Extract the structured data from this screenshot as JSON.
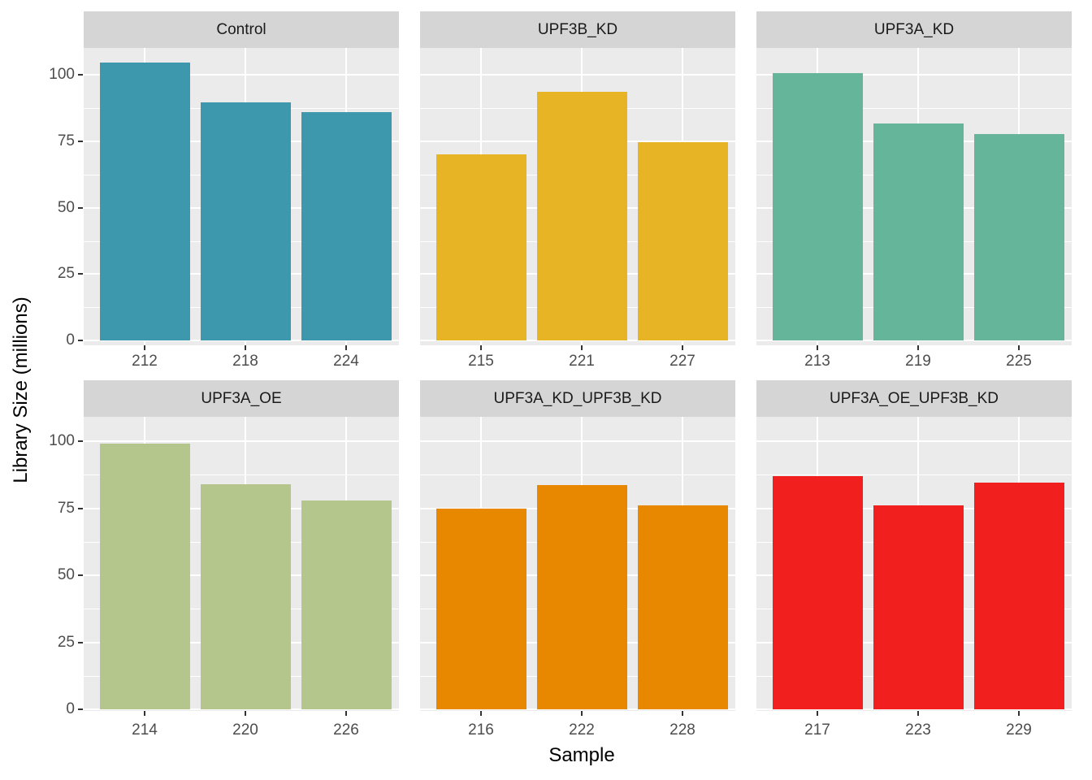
{
  "chart_data": {
    "type": "bar",
    "title": "",
    "xlabel": "Sample",
    "ylabel": "Library Size (millions)",
    "ylim": [
      0,
      110
    ],
    "y_ticks": [
      0,
      25,
      50,
      75,
      100
    ],
    "y_minor_gridlines": [
      12.5,
      37.5,
      62.5,
      87.5
    ],
    "grid": true,
    "legend": "none",
    "facet_layout": "2 rows x 3 columns",
    "facets": [
      {
        "label": "Control",
        "color": "#3D97AD",
        "categories": [
          "212",
          "218",
          "224"
        ],
        "values": [
          104.5,
          89.5,
          86.0
        ]
      },
      {
        "label": "UPF3B_KD",
        "color": "#E7B426",
        "categories": [
          "215",
          "221",
          "227"
        ],
        "values": [
          70.0,
          93.5,
          74.5
        ]
      },
      {
        "label": "UPF3A_KD",
        "color": "#64B59A",
        "categories": [
          "213",
          "219",
          "225"
        ],
        "values": [
          100.5,
          81.5,
          77.5
        ]
      },
      {
        "label": "UPF3A_OE",
        "color": "#B4C68C",
        "categories": [
          "214",
          "220",
          "226"
        ],
        "values": [
          99.0,
          84.0,
          78.0
        ]
      },
      {
        "label": "UPF3A_KD_UPF3B_KD",
        "color": "#E78800",
        "categories": [
          "216",
          "222",
          "228"
        ],
        "values": [
          75.0,
          83.5,
          76.0
        ]
      },
      {
        "label": "UPF3A_OE_UPF3B_KD",
        "color": "#F21F1F",
        "categories": [
          "217",
          "223",
          "229"
        ],
        "values": [
          87.0,
          76.0,
          84.5
        ]
      }
    ]
  },
  "theme": {
    "panel_background": "#EBEBEB",
    "strip_background": "#D5D5D5",
    "gridline_color": "#FFFFFF",
    "tick_label_color": "#4D4D4D",
    "strip_text_color": "#1A1A1A",
    "axis_title_color": "#000000"
  }
}
